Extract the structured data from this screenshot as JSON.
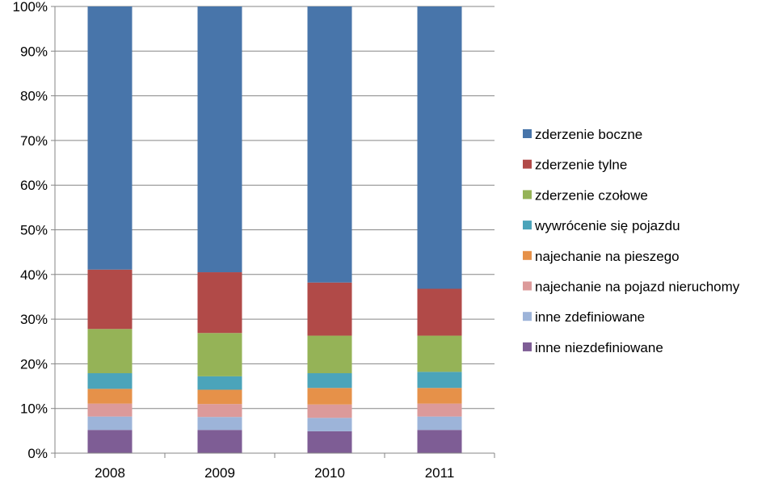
{
  "chart_data": {
    "type": "bar",
    "stacked": true,
    "percent_stacked": true,
    "categories": [
      "2008",
      "2009",
      "2010",
      "2011"
    ],
    "ylim": [
      0,
      100
    ],
    "yticks": [
      "0%",
      "10%",
      "20%",
      "30%",
      "40%",
      "50%",
      "60%",
      "70%",
      "80%",
      "90%",
      "100%"
    ],
    "grid": true,
    "legend_position": "right",
    "series": [
      {
        "name": "inne niezdefiniowane",
        "color": "#7E5D95",
        "values": [
          5.2,
          5.2,
          4.9,
          5.2
        ]
      },
      {
        "name": "inne zdefiniowane",
        "color": "#9DB4D9",
        "values": [
          3.0,
          2.9,
          3.0,
          3.0
        ]
      },
      {
        "name": "najechanie na pojazd nieruchomy",
        "color": "#DC9A9A",
        "values": [
          2.9,
          2.9,
          3.0,
          2.9
        ]
      },
      {
        "name": "najechanie na pieszego",
        "color": "#E69149",
        "values": [
          3.3,
          3.2,
          3.7,
          3.5
        ]
      },
      {
        "name": "wywrócenie się pojazdu",
        "color": "#4BA4BA",
        "values": [
          3.5,
          3.0,
          3.3,
          3.6
        ]
      },
      {
        "name": "zderzenie czołowe",
        "color": "#95B357",
        "values": [
          9.9,
          9.7,
          8.4,
          8.1
        ]
      },
      {
        "name": "zderzenie tylne",
        "color": "#B14A48",
        "values": [
          13.3,
          13.6,
          11.9,
          10.5
        ]
      },
      {
        "name": "zderzenie boczne",
        "color": "#4875AA",
        "values": [
          58.9,
          59.5,
          61.8,
          63.2
        ]
      }
    ]
  }
}
